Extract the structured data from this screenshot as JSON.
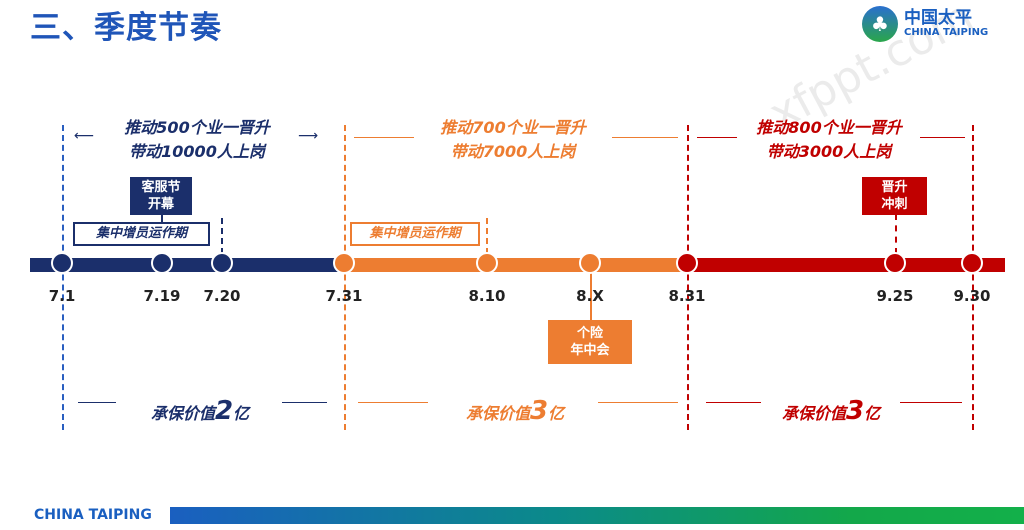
{
  "title": "三、季度节奏",
  "logo": {
    "cn": "中国太平",
    "en": "CHINA TAIPING"
  },
  "watermark": "xfppt.com",
  "phases": [
    {
      "goal_line1": "推动500个业一晋升",
      "goal_line2": "带动10000人上岗",
      "value_prefix": "承保价值",
      "value_num": "2",
      "value_suffix": "亿",
      "color": "#1b2f6b"
    },
    {
      "goal_line1": "推动700个业一晋升",
      "goal_line2": "带动7000人上岗",
      "value_prefix": "承保价值",
      "value_num": "3",
      "value_suffix": "亿",
      "color": "#ed7d31"
    },
    {
      "goal_line1": "推动800个业一晋升",
      "goal_line2": "带动3000人上岗",
      "value_prefix": "承保价值",
      "value_num": "3",
      "value_suffix": "亿",
      "color": "#c00000"
    }
  ],
  "dates": [
    "7.1",
    "7.19",
    "7.20",
    "7.31",
    "8.10",
    "8.X",
    "8.31",
    "9.25",
    "9.30"
  ],
  "events": {
    "kefu": {
      "line1": "客服节",
      "line2": "开幕"
    },
    "zengyuan_blue": "集中增员运作期",
    "zengyuan_orange": "集中增员运作期",
    "jinsheng": {
      "line1": "晋升",
      "line2": "冲刺"
    },
    "nianzhong": {
      "line1": "个险",
      "line2": "年中会"
    }
  },
  "footer": {
    "brand": "CHINA TAIPING"
  }
}
